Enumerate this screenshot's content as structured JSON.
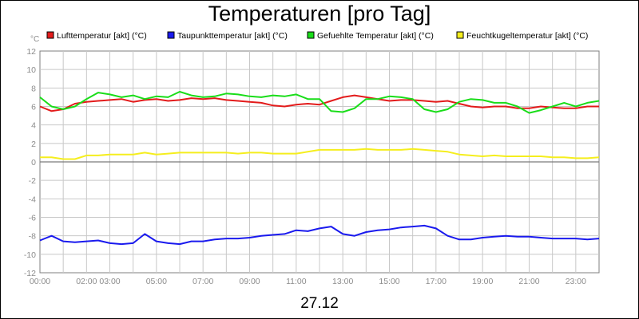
{
  "chart_data": {
    "type": "line",
    "title": "Temperaturen [pro Tag]",
    "unit_label": "°C",
    "date_label": "27.12",
    "x_tick_labels": [
      "00:00",
      "02:00",
      "03:00",
      "05:00",
      "07:00",
      "09:00",
      "11:00",
      "13:00",
      "15:00",
      "17:00",
      "19:00",
      "21:00",
      "23:00"
    ],
    "x_tick_hours": [
      0,
      2,
      3,
      5,
      7,
      9,
      11,
      13,
      15,
      17,
      19,
      21,
      23
    ],
    "x_range_hours": [
      0,
      24
    ],
    "y_ticks": [
      12,
      10,
      8,
      6,
      4,
      2,
      0,
      -2,
      -4,
      -6,
      -8,
      -10,
      -12
    ],
    "ylim": [
      -12,
      12
    ],
    "grid": true,
    "legend_position": "top",
    "x_hours": [
      0,
      0.5,
      1,
      1.5,
      2,
      2.5,
      3,
      3.5,
      4,
      4.5,
      5,
      5.5,
      6,
      6.5,
      7,
      7.5,
      8,
      8.5,
      9,
      9.5,
      10,
      10.5,
      11,
      11.5,
      12,
      12.5,
      13,
      13.5,
      14,
      14.5,
      15,
      15.5,
      16,
      16.5,
      17,
      17.5,
      18,
      18.5,
      19,
      19.5,
      20,
      20.5,
      21,
      21.5,
      22,
      22.5,
      23,
      23.5,
      24
    ],
    "series": [
      {
        "name": "Lufttemperatur [akt] (°C)",
        "color": "#e31b1b",
        "values": [
          6.0,
          5.5,
          5.7,
          6.3,
          6.5,
          6.6,
          6.7,
          6.8,
          6.5,
          6.7,
          6.8,
          6.6,
          6.7,
          6.9,
          6.8,
          6.9,
          6.7,
          6.6,
          6.5,
          6.4,
          6.1,
          6.0,
          6.2,
          6.3,
          6.2,
          6.6,
          7.0,
          7.2,
          7.0,
          6.8,
          6.6,
          6.7,
          6.7,
          6.6,
          6.5,
          6.6,
          6.3,
          6.0,
          5.9,
          6.0,
          6.0,
          5.8,
          5.8,
          6.0,
          5.9,
          5.8,
          5.8,
          6.0,
          6.0
        ]
      },
      {
        "name": "Taupunkttemperatur [akt] (°C)",
        "color": "#1a1aee",
        "values": [
          -8.5,
          -8.0,
          -8.6,
          -8.7,
          -8.6,
          -8.5,
          -8.8,
          -8.9,
          -8.8,
          -7.8,
          -8.6,
          -8.8,
          -8.9,
          -8.6,
          -8.6,
          -8.4,
          -8.3,
          -8.3,
          -8.2,
          -8.0,
          -7.9,
          -7.8,
          -7.4,
          -7.5,
          -7.2,
          -7.0,
          -7.8,
          -8.0,
          -7.6,
          -7.4,
          -7.3,
          -7.1,
          -7.0,
          -6.9,
          -7.2,
          -8.0,
          -8.4,
          -8.4,
          -8.2,
          -8.1,
          -8.0,
          -8.1,
          -8.1,
          -8.2,
          -8.3,
          -8.3,
          -8.3,
          -8.4,
          -8.3
        ]
      },
      {
        "name": "Gefuehlte Temperatur [akt] (°C)",
        "color": "#19dd19",
        "values": [
          7.0,
          6.0,
          5.7,
          6.0,
          6.8,
          7.5,
          7.3,
          7.0,
          7.2,
          6.8,
          7.1,
          7.0,
          7.6,
          7.2,
          7.0,
          7.1,
          7.4,
          7.3,
          7.1,
          7.0,
          7.2,
          7.1,
          7.3,
          6.8,
          6.8,
          5.5,
          5.4,
          5.8,
          6.8,
          6.8,
          7.1,
          7.0,
          6.8,
          5.7,
          5.4,
          5.7,
          6.5,
          6.8,
          6.7,
          6.4,
          6.4,
          6.0,
          5.3,
          5.6,
          6.0,
          6.4,
          6.0,
          6.4,
          6.6
        ]
      },
      {
        "name": "Feuchtkugeltemperatur [akt] (°C)",
        "color": "#f5ee1e",
        "values": [
          0.5,
          0.5,
          0.3,
          0.3,
          0.7,
          0.7,
          0.8,
          0.8,
          0.8,
          1.0,
          0.8,
          0.9,
          1.0,
          1.0,
          1.0,
          1.0,
          1.0,
          0.9,
          1.0,
          1.0,
          0.9,
          0.9,
          0.9,
          1.1,
          1.3,
          1.3,
          1.3,
          1.3,
          1.4,
          1.3,
          1.3,
          1.3,
          1.4,
          1.3,
          1.2,
          1.1,
          0.8,
          0.7,
          0.6,
          0.7,
          0.6,
          0.6,
          0.6,
          0.6,
          0.5,
          0.5,
          0.4,
          0.4,
          0.5
        ]
      }
    ]
  }
}
